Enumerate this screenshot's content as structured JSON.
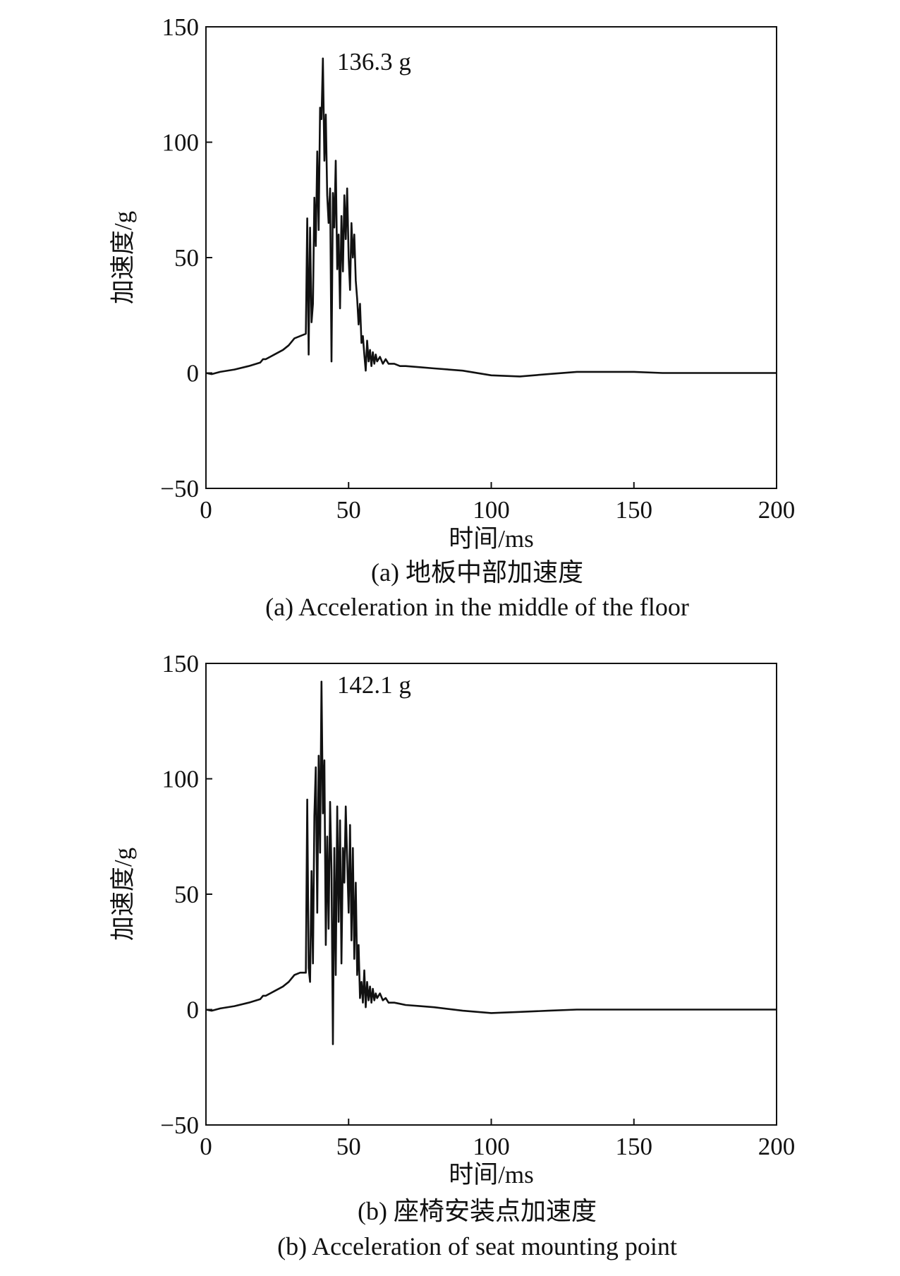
{
  "chart_data": [
    {
      "type": "line",
      "caption_cn": "(a) 地板中部加速度",
      "caption_en": "(a) Acceleration in the middle of the floor",
      "xlabel": "时间/ms",
      "ylabel": "加速度/g",
      "xlim": [
        0,
        200
      ],
      "ylim": [
        -50,
        150
      ],
      "xticks": [
        "0",
        "50",
        "100",
        "150",
        "200"
      ],
      "yticks": [
        "150",
        "100",
        "50",
        "0",
        "−50"
      ],
      "grid": false,
      "legend": "none",
      "peak_annotation": {
        "text": "136.3 g",
        "x": 41,
        "y": 136.3
      },
      "series": [
        {
          "color": "#111111",
          "x": [
            0,
            2,
            5,
            10,
            15,
            19,
            20,
            21,
            24,
            27,
            29,
            31,
            33,
            35,
            35.5,
            36,
            36.5,
            37,
            37.5,
            38,
            38.5,
            39,
            39.5,
            40,
            40.5,
            41,
            41.5,
            42,
            42.5,
            43,
            43.5,
            44,
            44.5,
            45,
            45.5,
            46,
            46.5,
            47,
            47.5,
            48,
            48.5,
            49,
            49.5,
            50,
            50.5,
            51,
            51.5,
            52,
            52.5,
            53,
            53.5,
            54,
            54.5,
            55,
            55.5,
            56,
            56.5,
            57,
            57.5,
            58,
            58.5,
            59,
            59.5,
            60,
            61,
            62,
            63,
            64,
            66,
            68,
            70,
            75,
            80,
            90,
            100,
            110,
            120,
            130,
            140,
            150,
            160,
            170,
            180,
            190,
            200
          ],
          "y": [
            0,
            -0.5,
            0.5,
            1.5,
            3,
            4.5,
            6,
            6,
            8,
            10,
            12,
            15,
            16,
            17,
            67,
            8,
            63,
            22,
            30,
            76,
            55,
            96,
            62,
            115,
            110,
            136.3,
            92,
            112,
            77,
            65,
            80,
            5,
            78,
            63,
            92,
            45,
            60,
            28,
            68,
            44,
            77,
            58,
            80,
            50,
            36,
            65,
            50,
            60,
            40,
            32,
            21,
            30,
            13,
            16,
            8,
            1,
            14,
            5,
            10,
            3,
            9,
            4,
            8,
            5,
            7,
            4,
            6,
            4,
            4,
            3,
            3,
            2.5,
            2,
            1,
            -1,
            -1.5,
            -0.5,
            0.5,
            0.5,
            0.5,
            0,
            0,
            0,
            0,
            0
          ]
        }
      ]
    },
    {
      "type": "line",
      "caption_cn": "(b) 座椅安装点加速度",
      "caption_en": "(b) Acceleration of seat mounting point",
      "xlabel": "时间/ms",
      "ylabel": "加速度/g",
      "xlim": [
        0,
        200
      ],
      "ylim": [
        -50,
        150
      ],
      "xticks": [
        "0",
        "50",
        "100",
        "150",
        "200"
      ],
      "yticks": [
        "150",
        "100",
        "50",
        "0",
        "−50"
      ],
      "grid": false,
      "legend": "none",
      "peak_annotation": {
        "text": "142.1 g",
        "x": 41,
        "y": 142.1
      },
      "series": [
        {
          "color": "#111111",
          "x": [
            0,
            2,
            5,
            10,
            15,
            19,
            20,
            21,
            24,
            27,
            29,
            31,
            33,
            35,
            35.5,
            36,
            36.5,
            37,
            37.5,
            38,
            38.5,
            39,
            39.5,
            40,
            40.5,
            41,
            41.5,
            42,
            42.5,
            43,
            43.5,
            44,
            44.5,
            45,
            45.5,
            46,
            46.5,
            47,
            47.5,
            48,
            48.5,
            49,
            49.5,
            50,
            50.5,
            51,
            51.5,
            52,
            52.5,
            53,
            53.5,
            54,
            54.5,
            55,
            55.5,
            56,
            56.5,
            57,
            57.5,
            58,
            58.5,
            59,
            59.5,
            60,
            61,
            62,
            63,
            64,
            66,
            68,
            70,
            75,
            80,
            90,
            100,
            110,
            120,
            130,
            140,
            150,
            160,
            170,
            180,
            190,
            200
          ],
          "y": [
            0,
            -0.5,
            0.5,
            1.5,
            3,
            4.5,
            6,
            6,
            8,
            10,
            12,
            15,
            16,
            16,
            91,
            18,
            12,
            60,
            20,
            84,
            105,
            42,
            110,
            68,
            142.1,
            85,
            108,
            28,
            75,
            35,
            90,
            60,
            -15,
            70,
            15,
            88,
            38,
            82,
            20,
            70,
            55,
            88,
            65,
            42,
            80,
            30,
            70,
            22,
            55,
            15,
            28,
            5,
            12,
            3,
            17,
            1,
            12,
            4,
            10,
            3,
            9,
            4,
            7,
            5,
            7,
            4,
            5,
            3,
            3,
            2.5,
            2,
            1.5,
            1,
            -0.5,
            -1.5,
            -1,
            -0.5,
            0,
            0,
            0,
            0,
            0,
            0,
            0,
            0
          ]
        }
      ]
    }
  ]
}
